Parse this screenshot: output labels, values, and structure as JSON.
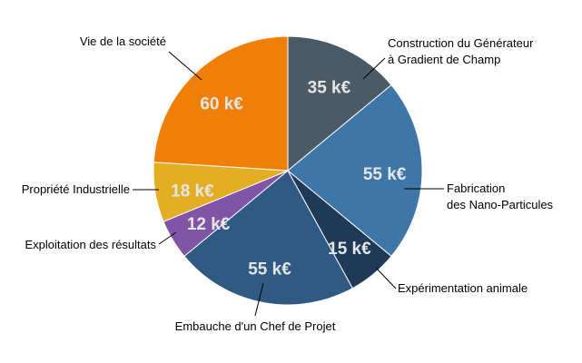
{
  "chart_data": {
    "type": "pie",
    "start": "12 o'clock",
    "direction": "clockwise",
    "slices": [
      {
        "id": "generateur",
        "label_lines": [
          "Construction du Générateur",
          "à Gradient de Champ"
        ],
        "value": 35,
        "value_label": "35 k€",
        "color": "#4a5a66"
      },
      {
        "id": "nano",
        "label_lines": [
          "Fabrication",
          "des Nano-Particules"
        ],
        "value": 55,
        "value_label": "55 k€",
        "color": "#3f76a8"
      },
      {
        "id": "animale",
        "label_lines": [
          "Expérimentation animale"
        ],
        "value": 15,
        "value_label": "15 k€",
        "color": "#1f3a56"
      },
      {
        "id": "chef",
        "label_lines": [
          "Embauche d'un Chef de Projet"
        ],
        "value": 55,
        "value_label": "55 k€",
        "color": "#2e5a84"
      },
      {
        "id": "exploitation",
        "label_lines": [
          "Exploitation des résultats"
        ],
        "value": 12,
        "value_label": "12 k€",
        "color": "#8155a6"
      },
      {
        "id": "propriete",
        "label_lines": [
          "Propriété Industrielle"
        ],
        "value": 18,
        "value_label": "18 k€",
        "color": "#e3ad24"
      },
      {
        "id": "societe",
        "label_lines": [
          "Vie de la société"
        ],
        "value": 60,
        "value_label": "60 k€",
        "color": "#f07f09"
      }
    ]
  }
}
